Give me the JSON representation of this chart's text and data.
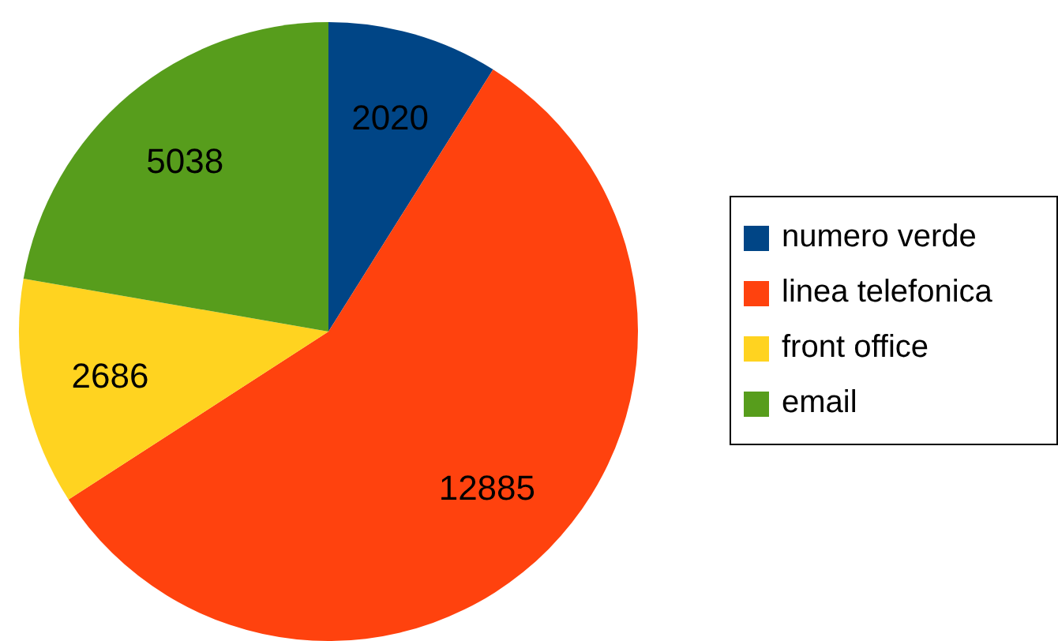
{
  "chart_data": {
    "type": "pie",
    "categories": [
      "numero verde",
      "linea telefonica",
      "front office",
      "email"
    ],
    "values": [
      2020,
      12885,
      2686,
      5038
    ],
    "colors": [
      "#004586",
      "#ff420e",
      "#ffd320",
      "#579d1c"
    ],
    "data_labels": true,
    "legend": "right"
  }
}
